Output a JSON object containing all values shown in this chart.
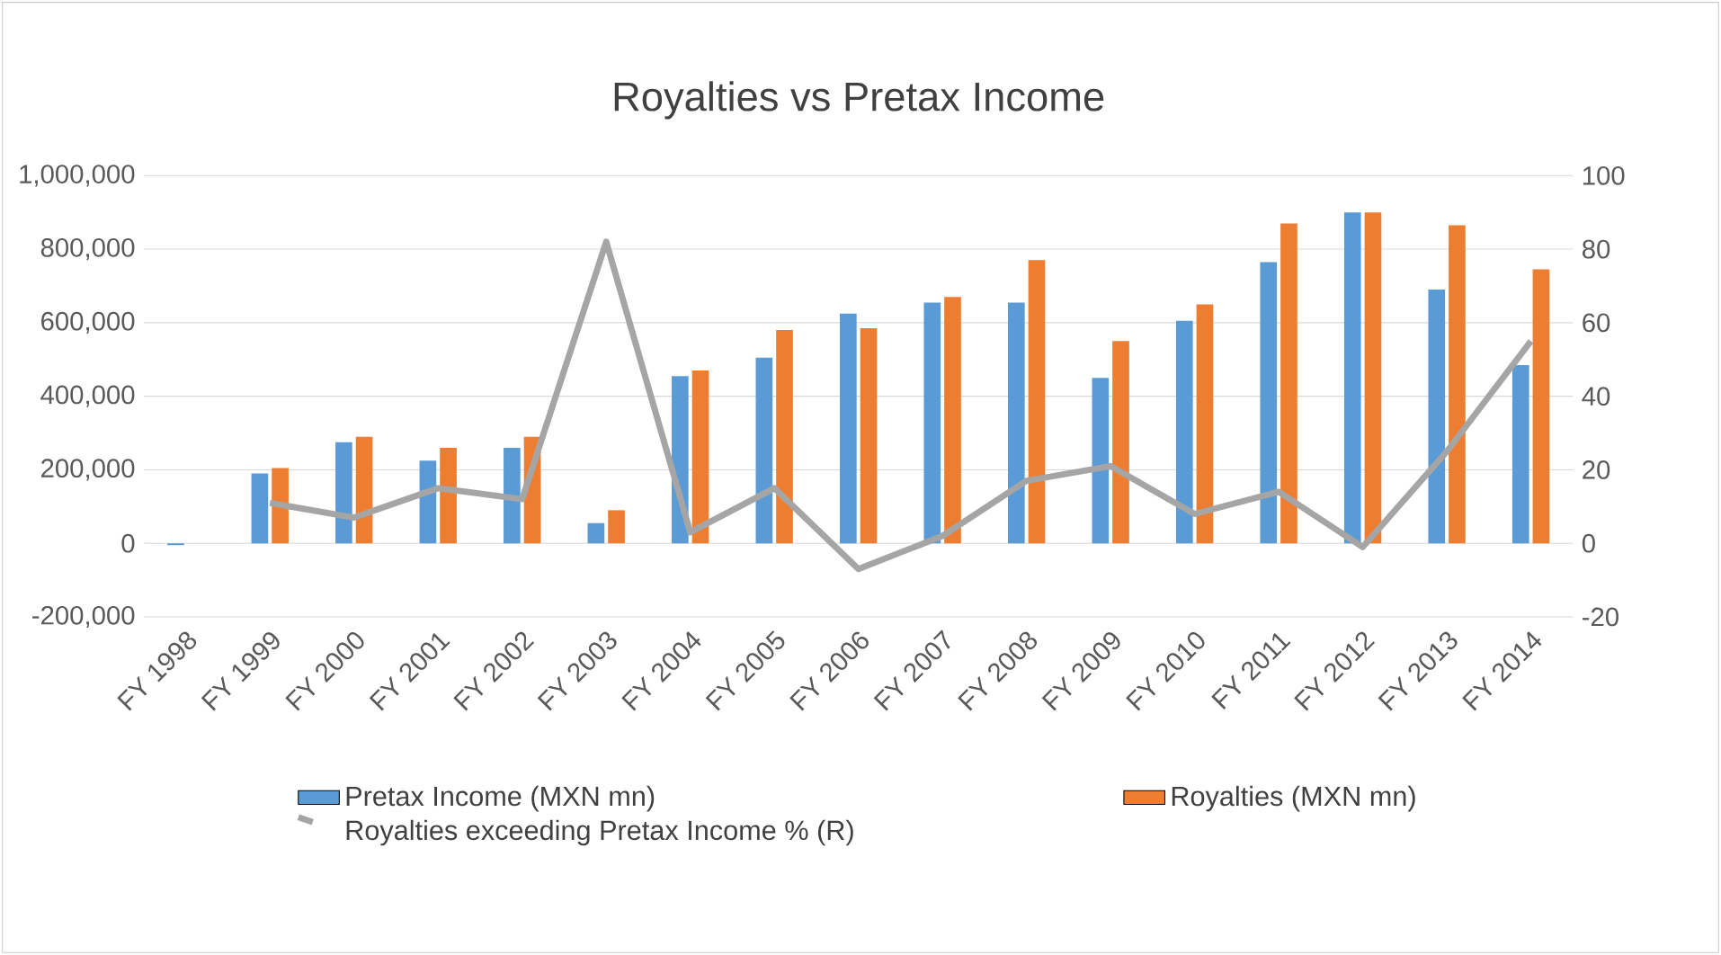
{
  "chart_data": {
    "type": "bar",
    "title": "Royalties vs Pretax Income",
    "categories": [
      "FY 1998",
      "FY 1999",
      "FY 2000",
      "FY 2001",
      "FY 2002",
      "FY 2003",
      "FY 2004",
      "FY 2005",
      "FY 2006",
      "FY 2007",
      "FY 2008",
      "FY 2009",
      "FY 2010",
      "FY 2011",
      "FY 2012",
      "FY 2013",
      "FY 2014"
    ],
    "series": [
      {
        "name": "Pretax Income (MXN mn)",
        "color": "#5b9bd5",
        "values": [
          -5000,
          190000,
          275000,
          225000,
          260000,
          55000,
          455000,
          505000,
          625000,
          655000,
          655000,
          450000,
          605000,
          765000,
          900000,
          690000,
          485000
        ]
      },
      {
        "name": "Royalties (MXN mn)",
        "color": "#ed7d31",
        "values": [
          null,
          205000,
          290000,
          260000,
          290000,
          90000,
          470000,
          580000,
          585000,
          670000,
          770000,
          550000,
          650000,
          870000,
          900000,
          865000,
          745000
        ]
      },
      {
        "name": "Royalties exceeding Pretax Income % (R)",
        "type": "line",
        "axis": "y2",
        "color": "#a5a5a5",
        "values": [
          null,
          11,
          7,
          15,
          12,
          82,
          3,
          15,
          -7,
          2,
          17,
          21,
          8,
          14,
          -1,
          25,
          55
        ]
      }
    ],
    "ylim": [
      -200000,
      1000000
    ],
    "yticks": [
      {
        "value": -200000,
        "label": "-200,000"
      },
      0,
      {
        "value": 200000,
        "label": "200,000"
      },
      {
        "value": 400000,
        "label": "400,000"
      },
      {
        "value": 600000,
        "label": "600,000"
      },
      {
        "value": 800000,
        "label": "800,000"
      },
      {
        "value": 1000000,
        "label": "1,000,000"
      }
    ],
    "y2lim": [
      -20,
      100
    ],
    "y2ticks": [
      -20,
      0,
      20,
      40,
      60,
      80,
      100
    ],
    "grid": "y",
    "legend": "bottom",
    "marker": "none",
    "line_style": "solid"
  }
}
